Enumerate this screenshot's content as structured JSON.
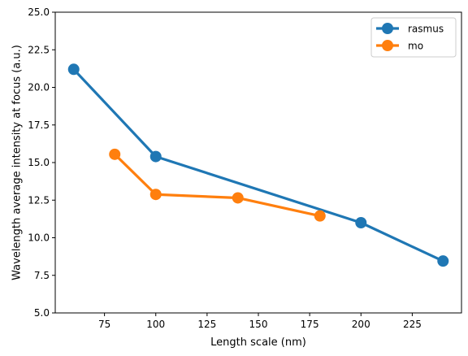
{
  "chart_data": {
    "type": "line",
    "title": "",
    "xlabel": "Length scale (nm)",
    "ylabel": "Wavelength average intensity at focus (a.u.)",
    "xlim": [
      51,
      249
    ],
    "ylim": [
      5.0,
      25.0
    ],
    "xticks": [
      75,
      100,
      125,
      150,
      175,
      200,
      225
    ],
    "xtick_labels": [
      "75",
      "100",
      "125",
      "150",
      "175",
      "200",
      "225"
    ],
    "yticks": [
      5.0,
      7.5,
      10.0,
      12.5,
      15.0,
      17.5,
      20.0,
      22.5,
      25.0
    ],
    "ytick_labels": [
      "5.0",
      "7.5",
      "10.0",
      "12.5",
      "15.0",
      "17.5",
      "20.0",
      "22.5",
      "25.0"
    ],
    "grid": false,
    "legend_position": "top-right",
    "series": [
      {
        "name": "rasmus",
        "color": "#1f77b4",
        "marker": "circle",
        "x": [
          60,
          100,
          200,
          240
        ],
        "y": [
          21.2,
          15.4,
          11.0,
          8.45
        ]
      },
      {
        "name": "mo",
        "color": "#ff7f0e",
        "marker": "circle",
        "x": [
          80,
          100,
          140,
          180
        ],
        "y": [
          15.55,
          12.88,
          12.65,
          11.45
        ]
      }
    ]
  }
}
